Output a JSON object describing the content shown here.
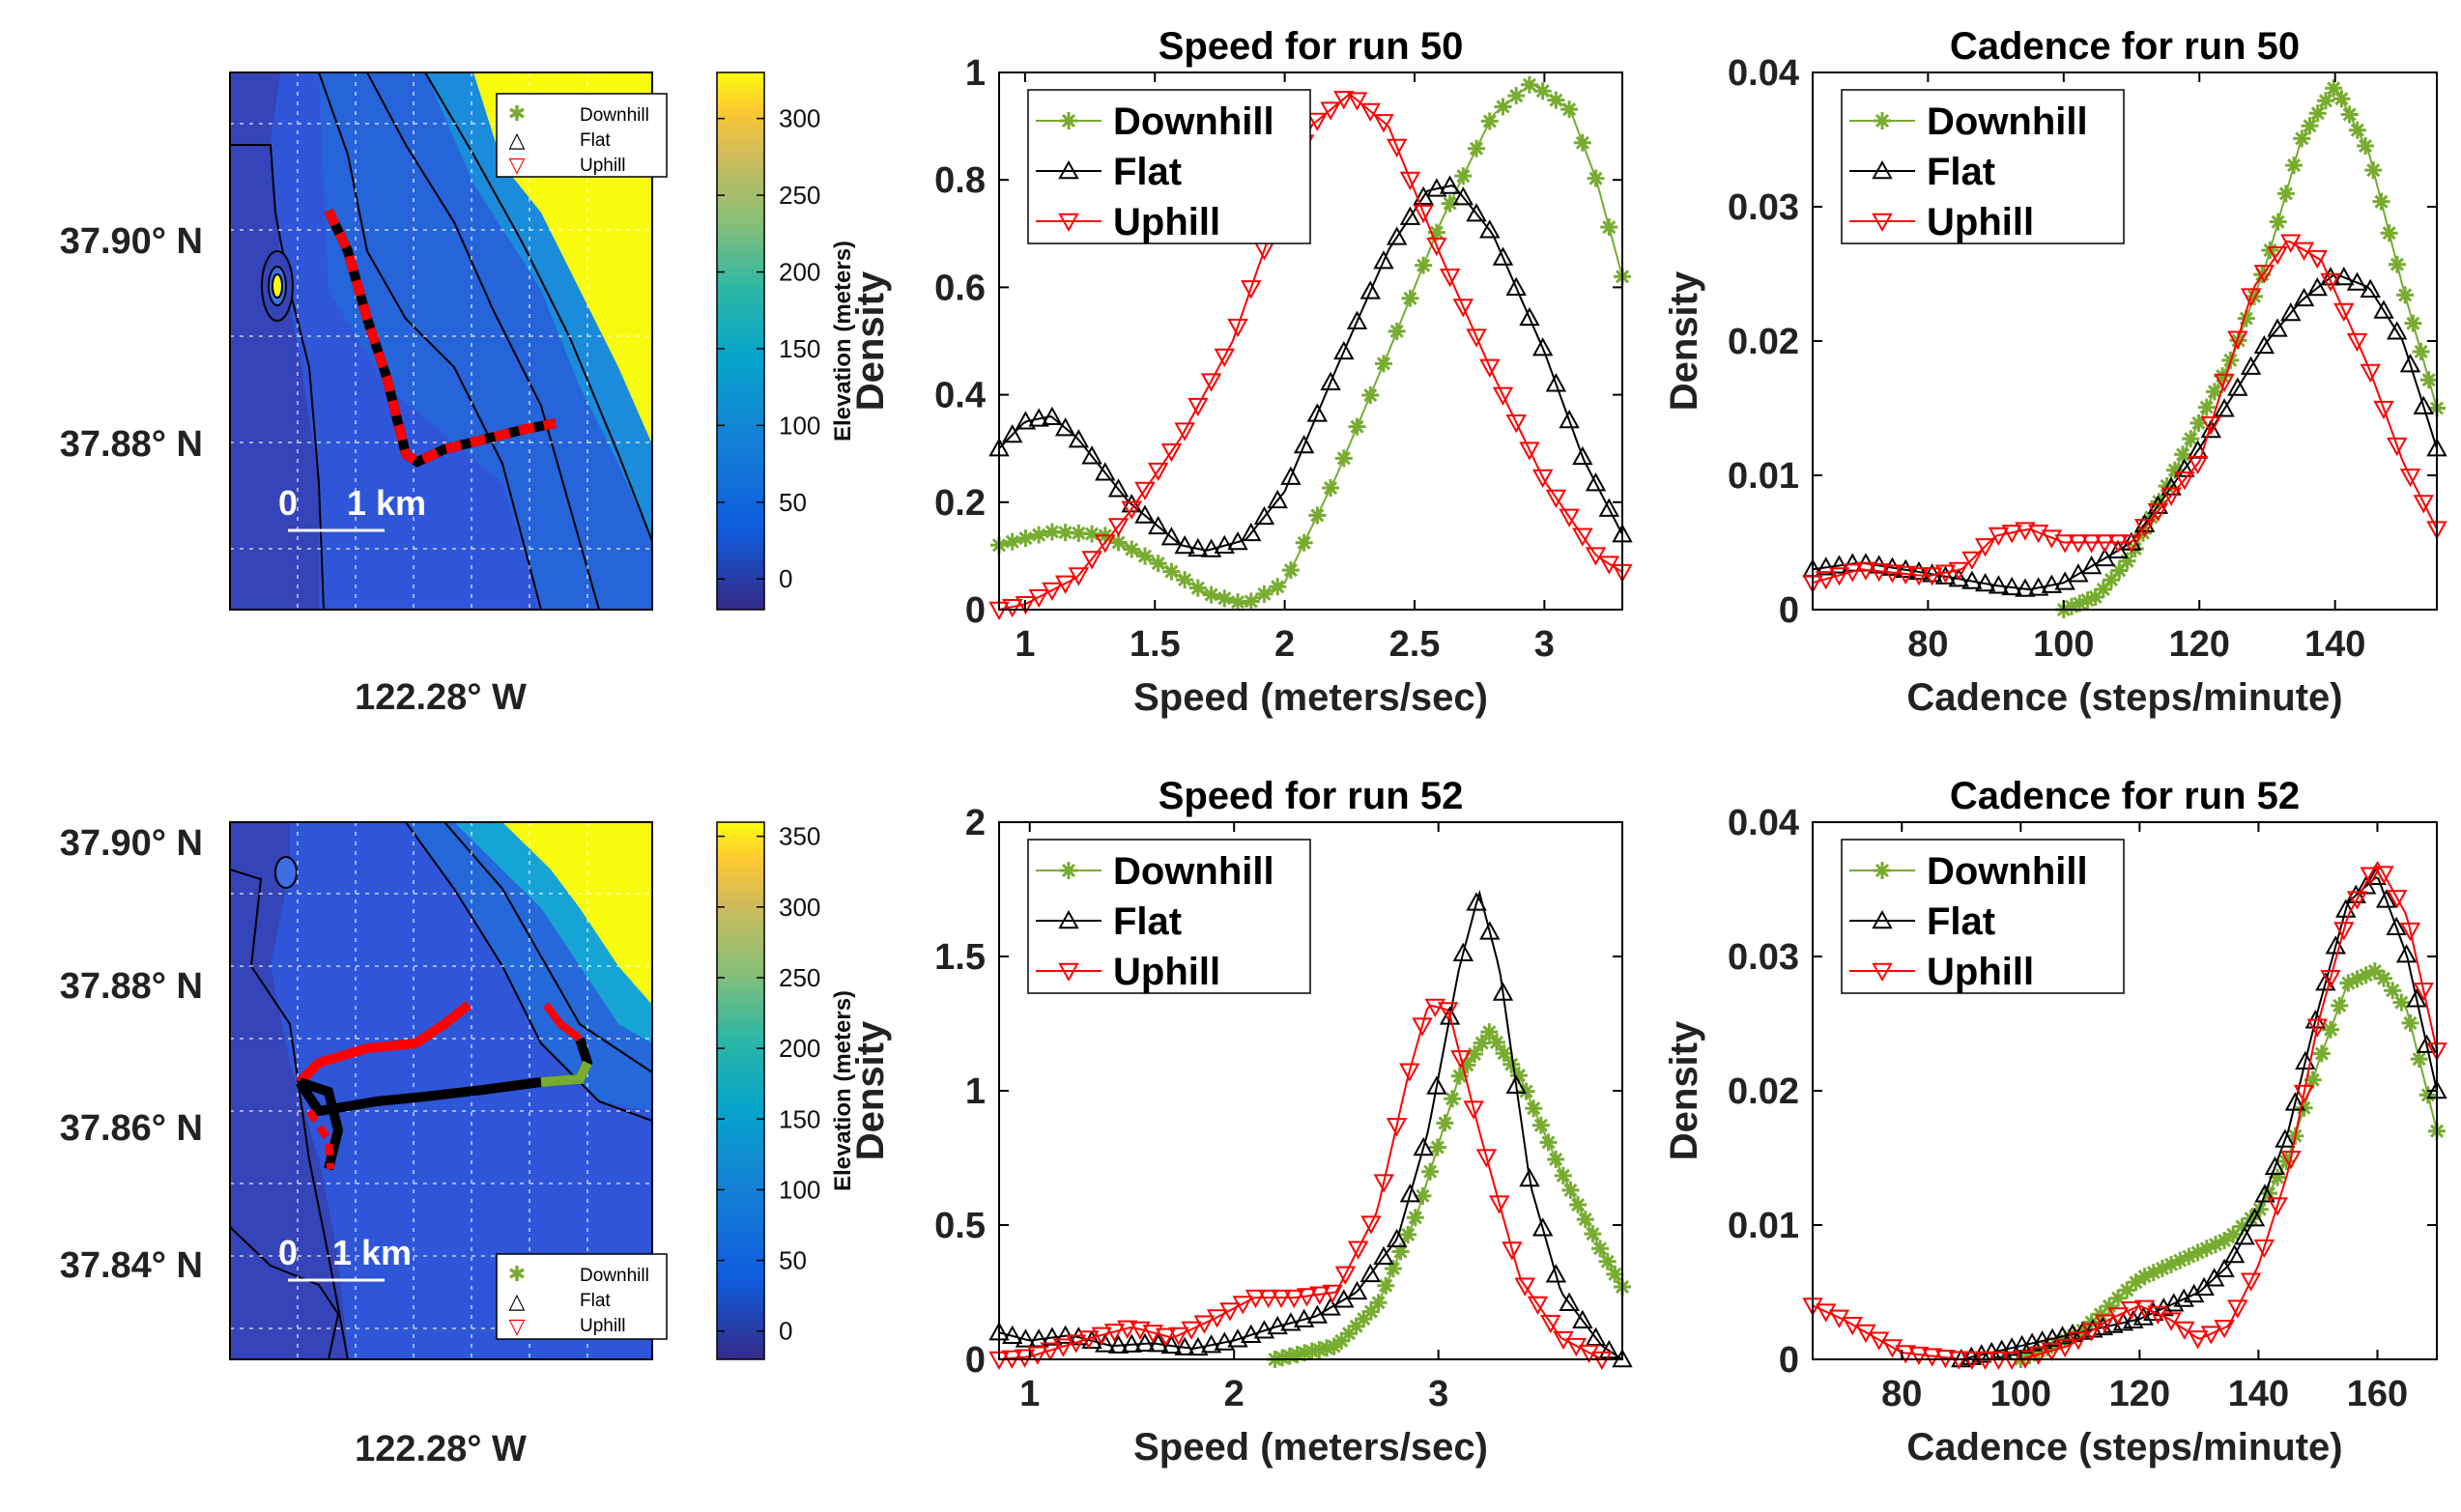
{
  "chart_data": [
    {
      "type": "map",
      "id": "map50",
      "lat_ticks": [
        "37.90° N",
        "37.88° N"
      ],
      "lon_label": "122.28° W",
      "scale_bar": {
        "left": "0",
        "right": "1 km"
      },
      "legend": [
        "Downhill",
        "Flat",
        "Uphill"
      ],
      "colorbar": {
        "label": "Elevation (meters)",
        "ticks": [
          0,
          50,
          100,
          150,
          200,
          250,
          300
        ],
        "range": [
          -20,
          330
        ]
      }
    },
    {
      "type": "line",
      "id": "speed50",
      "title": "Speed for run 50",
      "xlabel": "Speed (meters/sec)",
      "ylabel": "Density",
      "xlim": [
        0.9,
        3.3
      ],
      "ylim": [
        0,
        1
      ],
      "xticks": [
        1,
        1.5,
        2,
        2.5,
        3
      ],
      "yticks": [
        0,
        0.2,
        0.4,
        0.6,
        0.8,
        1
      ],
      "ytick_labels": [
        "0",
        "0.2",
        "0.4",
        "0.6",
        "0.8",
        "1"
      ],
      "legend": "top-left",
      "series": [
        {
          "name": "Downhill",
          "color": "#77ac30",
          "marker": "star",
          "x": [
            0.9,
            1.1,
            1.3,
            1.5,
            1.7,
            1.85,
            2.0,
            2.2,
            2.4,
            2.6,
            2.8,
            2.95,
            3.1,
            3.2,
            3.3
          ],
          "y": [
            0.12,
            0.145,
            0.14,
            0.09,
            0.03,
            0.01,
            0.05,
            0.25,
            0.48,
            0.72,
            0.92,
            0.98,
            0.93,
            0.8,
            0.62
          ]
        },
        {
          "name": "Flat",
          "color": "#000000",
          "marker": "triangle-up",
          "x": [
            0.9,
            1.0,
            1.1,
            1.2,
            1.4,
            1.6,
            1.7,
            1.85,
            2.0,
            2.2,
            2.4,
            2.55,
            2.65,
            2.8,
            3.0,
            3.15,
            3.3
          ],
          "y": [
            0.3,
            0.35,
            0.36,
            0.32,
            0.2,
            0.12,
            0.11,
            0.13,
            0.22,
            0.45,
            0.67,
            0.78,
            0.79,
            0.7,
            0.48,
            0.28,
            0.14
          ]
        },
        {
          "name": "Uphill",
          "color": "#ff0000",
          "marker": "triangle-down",
          "x": [
            0.9,
            1.0,
            1.2,
            1.4,
            1.6,
            1.8,
            2.0,
            2.1,
            2.25,
            2.4,
            2.6,
            2.8,
            3.0,
            3.2,
            3.3
          ],
          "y": [
            0.0,
            0.01,
            0.06,
            0.18,
            0.32,
            0.5,
            0.78,
            0.9,
            0.96,
            0.9,
            0.66,
            0.44,
            0.24,
            0.1,
            0.07
          ]
        }
      ]
    },
    {
      "type": "line",
      "id": "cadence50",
      "title": "Cadence for run 50",
      "xlabel": "Cadence (steps/minute)",
      "ylabel": "Density",
      "xlim": [
        63,
        155
      ],
      "ylim": [
        0,
        0.04
      ],
      "xticks": [
        80,
        100,
        120,
        140
      ],
      "yticks": [
        0,
        0.01,
        0.02,
        0.03,
        0.04
      ],
      "ytick_labels": [
        "0",
        "0.01",
        "0.02",
        "0.03",
        "0.04"
      ],
      "legend": "top-left",
      "series": [
        {
          "name": "Downhill",
          "color": "#77ac30",
          "marker": "star",
          "x": [
            100,
            105,
            110,
            115,
            120,
            125,
            130,
            135,
            140,
            145,
            150,
            155
          ],
          "y": [
            0.0,
            0.001,
            0.004,
            0.009,
            0.014,
            0.019,
            0.026,
            0.035,
            0.039,
            0.034,
            0.024,
            0.015
          ]
        },
        {
          "name": "Flat",
          "color": "#000000",
          "marker": "triangle-up",
          "x": [
            63,
            70,
            80,
            90,
            95,
            100,
            110,
            120,
            130,
            135,
            140,
            145,
            150,
            155
          ],
          "y": [
            0.003,
            0.0035,
            0.0027,
            0.0018,
            0.0015,
            0.002,
            0.005,
            0.012,
            0.02,
            0.023,
            0.025,
            0.024,
            0.02,
            0.012
          ]
        },
        {
          "name": "Uphill",
          "color": "#ff0000",
          "marker": "triangle-down",
          "x": [
            63,
            70,
            80,
            85,
            90,
            95,
            100,
            110,
            120,
            128,
            133,
            138,
            145,
            150,
            155
          ],
          "y": [
            0.002,
            0.003,
            0.0025,
            0.003,
            0.0055,
            0.006,
            0.005,
            0.005,
            0.011,
            0.024,
            0.0275,
            0.026,
            0.018,
            0.011,
            0.006
          ]
        }
      ]
    },
    {
      "type": "map",
      "id": "map52",
      "lat_ticks": [
        "37.90° N",
        "37.88° N",
        "37.86° N",
        "37.84° N"
      ],
      "lon_label": "122.28° W",
      "scale_bar": {
        "left": "0",
        "right": "1 km"
      },
      "legend": [
        "Downhill",
        "Flat",
        "Uphill"
      ],
      "colorbar": {
        "label": "Elevation (meters)",
        "ticks": [
          0,
          50,
          100,
          150,
          200,
          250,
          300,
          350
        ],
        "range": [
          -20,
          360
        ]
      }
    },
    {
      "type": "line",
      "id": "speed52",
      "title": "Speed for run 52",
      "xlabel": "Speed (meters/sec)",
      "ylabel": "Density",
      "xlim": [
        0.85,
        3.9
      ],
      "ylim": [
        0,
        2
      ],
      "xticks": [
        1,
        2,
        3
      ],
      "yticks": [
        0,
        0.5,
        1,
        1.5,
        2
      ],
      "ytick_labels": [
        "0",
        "0.5",
        "1",
        "1.5",
        "2"
      ],
      "legend": "top-left",
      "series": [
        {
          "name": "Downhill",
          "color": "#77ac30",
          "marker": "star",
          "x": [
            2.2,
            2.5,
            2.7,
            2.9,
            3.1,
            3.25,
            3.4,
            3.6,
            3.8,
            3.9
          ],
          "y": [
            0.0,
            0.05,
            0.2,
            0.55,
            1.05,
            1.22,
            1.05,
            0.7,
            0.4,
            0.27
          ]
        },
        {
          "name": "Flat",
          "color": "#000000",
          "marker": "triangle-up",
          "x": [
            0.85,
            1.0,
            1.2,
            1.4,
            1.6,
            1.8,
            2.0,
            2.2,
            2.4,
            2.6,
            2.8,
            2.95,
            3.1,
            3.2,
            3.3,
            3.45,
            3.6,
            3.8,
            3.9
          ],
          "y": [
            0.1,
            0.07,
            0.09,
            0.05,
            0.06,
            0.04,
            0.07,
            0.12,
            0.16,
            0.25,
            0.45,
            0.85,
            1.45,
            1.74,
            1.45,
            0.65,
            0.25,
            0.05,
            0.0
          ]
        },
        {
          "name": "Uphill",
          "color": "#ff0000",
          "marker": "triangle-down",
          "x": [
            0.85,
            1.0,
            1.3,
            1.5,
            1.7,
            1.9,
            2.1,
            2.3,
            2.5,
            2.7,
            2.85,
            2.95,
            3.05,
            3.2,
            3.4,
            3.6,
            3.8
          ],
          "y": [
            0.0,
            0.01,
            0.08,
            0.12,
            0.08,
            0.15,
            0.23,
            0.23,
            0.25,
            0.55,
            1.05,
            1.32,
            1.3,
            0.85,
            0.3,
            0.08,
            0.0
          ]
        }
      ]
    },
    {
      "type": "line",
      "id": "cadence52",
      "title": "Cadence for run 52",
      "xlabel": "Cadence (steps/minute)",
      "ylabel": "Density",
      "xlim": [
        65,
        170
      ],
      "ylim": [
        0,
        0.04
      ],
      "xticks": [
        80,
        100,
        120,
        140,
        160
      ],
      "yticks": [
        0,
        0.01,
        0.02,
        0.03,
        0.04
      ],
      "ytick_labels": [
        "0",
        "0.01",
        "0.02",
        "0.03",
        "0.04"
      ],
      "legend": "top-left",
      "series": [
        {
          "name": "Downhill",
          "color": "#77ac30",
          "marker": "star",
          "x": [
            100,
            110,
            120,
            130,
            135,
            140,
            145,
            150,
            155,
            160,
            165,
            170
          ],
          "y": [
            0.0,
            0.002,
            0.006,
            0.008,
            0.009,
            0.011,
            0.015,
            0.022,
            0.028,
            0.029,
            0.026,
            0.017
          ]
        },
        {
          "name": "Flat",
          "color": "#000000",
          "marker": "triangle-up",
          "x": [
            90,
            100,
            110,
            120,
            130,
            135,
            140,
            145,
            150,
            155,
            160,
            165,
            170
          ],
          "y": [
            0.0,
            0.001,
            0.002,
            0.003,
            0.005,
            0.007,
            0.011,
            0.017,
            0.026,
            0.034,
            0.036,
            0.03,
            0.02
          ]
        },
        {
          "name": "Uphill",
          "color": "#ff0000",
          "marker": "triangle-down",
          "x": [
            65,
            70,
            80,
            90,
            100,
            108,
            115,
            120,
            125,
            130,
            135,
            140,
            145,
            150,
            155,
            160,
            165,
            170
          ],
          "y": [
            0.004,
            0.003,
            0.0005,
            0.0,
            0.0,
            0.001,
            0.003,
            0.004,
            0.003,
            0.0015,
            0.0025,
            0.007,
            0.014,
            0.025,
            0.033,
            0.037,
            0.033,
            0.023
          ]
        }
      ]
    }
  ]
}
